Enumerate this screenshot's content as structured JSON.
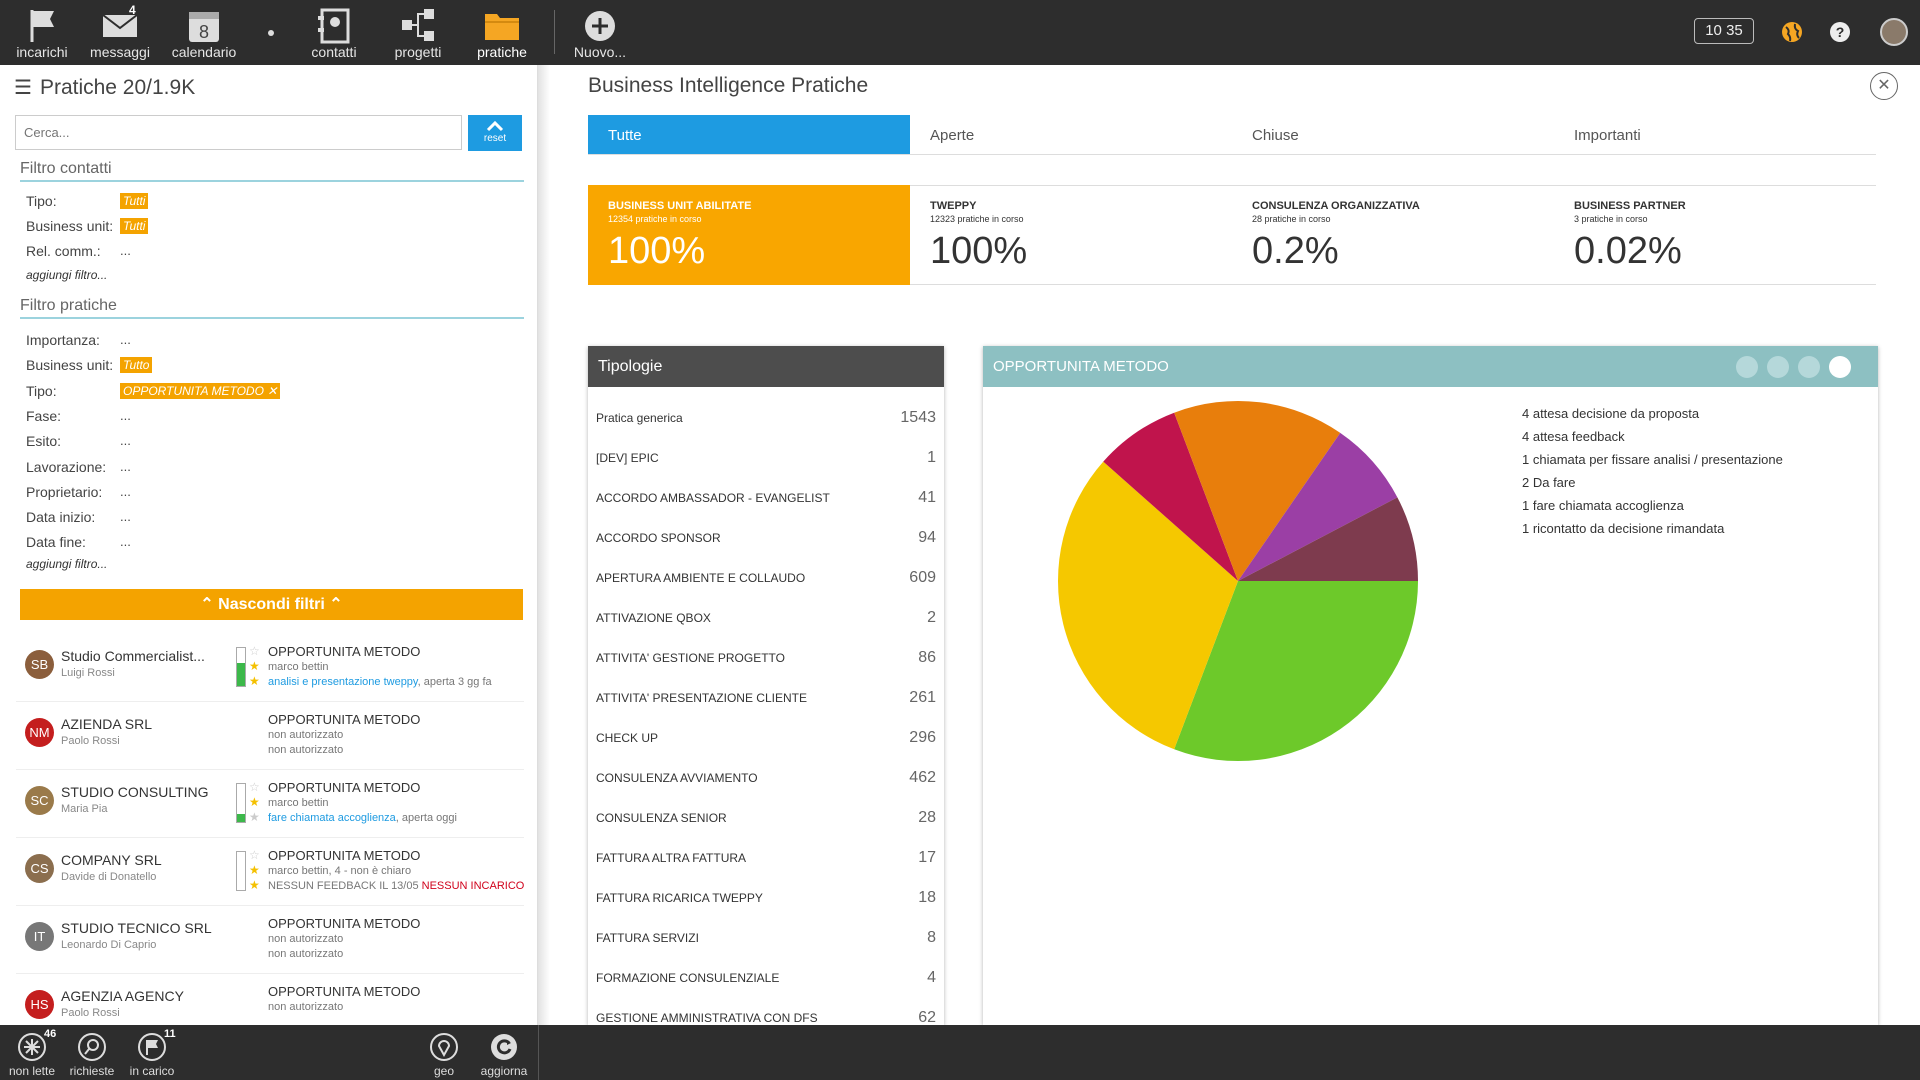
{
  "topbar": {
    "items": [
      {
        "label": "incarichi",
        "icon": "flag-icon",
        "badge": ""
      },
      {
        "label": "messaggi",
        "icon": "envelope-icon",
        "badge": "4"
      },
      {
        "label": "calendario",
        "icon": "calendar-icon",
        "badge": "",
        "day": "8"
      },
      {
        "label": "contatti",
        "icon": "contacts-icon",
        "badge": ""
      },
      {
        "label": "progetti",
        "icon": "hierarchy-icon",
        "badge": ""
      },
      {
        "label": "pratiche",
        "icon": "folder-icon",
        "badge": ""
      },
      {
        "label": "Nuovo...",
        "icon": "plus-circle-icon",
        "badge": ""
      }
    ],
    "clock": "10 35",
    "active_color": "#f5a623"
  },
  "left": {
    "title": "Pratiche 20/1.9K",
    "search_placeholder": "Cerca...",
    "reset_label": "reset",
    "filtro_contatti": {
      "title": "Filtro contatti",
      "rows": [
        {
          "label": "Tipo:",
          "value": "Tutti",
          "tag": true
        },
        {
          "label": "Business unit:",
          "value": "Tutti",
          "tag": true
        },
        {
          "label": "Rel. comm.:",
          "value": "...",
          "tag": false
        }
      ],
      "add": "aggiungi filtro..."
    },
    "filtro_pratiche": {
      "title": "Filtro pratiche",
      "rows": [
        {
          "label": "Importanza:",
          "value": "...",
          "tag": false
        },
        {
          "label": "Business unit:",
          "value": "Tutto",
          "tag": true
        },
        {
          "label": "Tipo:",
          "value": "OPPORTUNITA METODO ✕",
          "tag": true
        },
        {
          "label": "Fase:",
          "value": "...",
          "tag": false
        },
        {
          "label": "Esito:",
          "value": "...",
          "tag": false
        },
        {
          "label": "Lavorazione:",
          "value": "...",
          "tag": false
        },
        {
          "label": "Proprietario:",
          "value": "...",
          "tag": false
        },
        {
          "label": "Data inizio:",
          "value": "...",
          "tag": false
        },
        {
          "label": "Data fine:",
          "value": "...",
          "tag": false
        }
      ],
      "add": "aggiungi filtro..."
    },
    "hide_filters": "Nascondi filtri",
    "pratiche": [
      {
        "initials": "SB",
        "color": "#8b5e3c",
        "name": "Studio Commercialist...",
        "person": "Luigi Rossi",
        "type": "OPPORTUNITA METODO",
        "line2": "marco bettin",
        "line3_link": "analisi e presentazione tweppy",
        "line3_rest": ", aperta 3 gg fa",
        "line3_red": "",
        "progress": 0.6,
        "stars": 2
      },
      {
        "initials": "NM",
        "color": "#c41e1e",
        "name": "AZIENDA SRL",
        "person": "Paolo Rossi",
        "type": "OPPORTUNITA METODO",
        "line2": "non autorizzato",
        "line3_link": "",
        "line3_rest": "non autorizzato",
        "line3_red": "",
        "progress": null,
        "stars": 0
      },
      {
        "initials": "SC",
        "color": "#9a7a4a",
        "name": "STUDIO CONSULTING",
        "person": "Maria Pia",
        "type": "OPPORTUNITA METODO",
        "line2": "marco bettin",
        "line3_link": "fare chiamata accoglienza",
        "line3_rest": ", aperta oggi",
        "line3_red": "",
        "progress": 0.2,
        "stars": 1
      },
      {
        "initials": "CS",
        "color": "#8b6e4e",
        "name": "COMPANY SRL",
        "person": "Davide di Donatello",
        "type": "OPPORTUNITA METODO",
        "line2": "marco bettin, 4 - non è chiaro",
        "line3_link": "",
        "line3_rest": "NESSUN FEEDBACK IL 13/05 ",
        "line3_red": "NESSUN INCARICO",
        "progress": 0.0,
        "stars": 2
      },
      {
        "initials": "IT",
        "color": "#777777",
        "name": "STUDIO TECNICO SRL",
        "person": "Leonardo Di Caprio",
        "type": "OPPORTUNITA METODO",
        "line2": "non autorizzato",
        "line3_link": "",
        "line3_rest": "non autorizzato",
        "line3_red": "",
        "progress": null,
        "stars": 0
      },
      {
        "initials": "HS",
        "color": "#c41e1e",
        "name": "AGENZIA AGENCY",
        "person": "Paolo Rossi",
        "type": "OPPORTUNITA METODO",
        "line2": "non autorizzato",
        "line3_link": "",
        "line3_rest": "",
        "line3_red": "",
        "progress": null,
        "stars": 0
      }
    ]
  },
  "main": {
    "title": "Business Intelligence Pratiche",
    "tabs": [
      "Tutte",
      "Aperte",
      "Chiuse",
      "Importanti"
    ],
    "kpis": [
      {
        "name": "BUSINESS UNIT ABILITATE",
        "sub": "12354 pratiche in corso",
        "value": "100%"
      },
      {
        "name": "TWEPPY",
        "sub": "12323 pratiche in corso",
        "value": "100%"
      },
      {
        "name": "CONSULENZA ORGANIZZATIVA",
        "sub": "28 pratiche in corso",
        "value": "0.2%"
      },
      {
        "name": "BUSINESS PARTNER",
        "sub": "3 pratiche in corso",
        "value": "0.02%"
      }
    ],
    "tipologie": {
      "title": "Tipologie",
      "rows": [
        {
          "name": "Pratica generica",
          "value": "1543"
        },
        {
          "name": "[DEV] EPIC",
          "value": "1"
        },
        {
          "name": "ACCORDO AMBASSADOR - EVANGELIST",
          "value": "41"
        },
        {
          "name": "ACCORDO SPONSOR",
          "value": "94"
        },
        {
          "name": "APERTURA AMBIENTE E COLLAUDO",
          "value": "609"
        },
        {
          "name": "ATTIVAZIONE QBOX",
          "value": "2"
        },
        {
          "name": "ATTIVITA' GESTIONE PROGETTO",
          "value": "86"
        },
        {
          "name": "ATTIVITA' PRESENTAZIONE CLIENTE",
          "value": "261"
        },
        {
          "name": "CHECK UP",
          "value": "296"
        },
        {
          "name": "CONSULENZA AVVIAMENTO",
          "value": "462"
        },
        {
          "name": "CONSULENZA SENIOR",
          "value": "28"
        },
        {
          "name": "FATTURA ALTRA FATTURA",
          "value": "17"
        },
        {
          "name": "FATTURA RICARICA TWEPPY",
          "value": "18"
        },
        {
          "name": "FATTURA SERVIZI",
          "value": "8"
        },
        {
          "name": "FORMAZIONE CONSULENZIALE",
          "value": "4"
        },
        {
          "name": "GESTIONE AMMINISTRATIVA CON DFS",
          "value": "62"
        }
      ]
    },
    "chart_title": "OPPORTUNITA METODO",
    "legend": [
      "4  attesa decisione da proposta",
      "4  attesa feedback",
      "1  chiamata per fissare analisi / presentazione",
      "2  Da fare",
      "1  fare chiamata accoglienza",
      "1  ricontatto da decisione rimandata"
    ]
  },
  "chart_data": {
    "type": "pie",
    "title": "OPPORTUNITA METODO",
    "slices": [
      {
        "label": "attesa decisione da proposta",
        "value": 4,
        "color": "#f5c800"
      },
      {
        "label": "attesa feedback",
        "value": 4,
        "color": "#6dc92a"
      },
      {
        "label": "chiamata per fissare analisi / presentazione",
        "value": 1,
        "color": "#7e3b4e"
      },
      {
        "label": "Da fare",
        "value": 2,
        "color": "#e87e0c"
      },
      {
        "label": "fare chiamata accoglienza",
        "value": 1,
        "color": "#c0144c"
      },
      {
        "label": "ricontatto da decisione rimandata",
        "value": 1,
        "color": "#9b3fa5"
      }
    ]
  },
  "bottombar": {
    "items": [
      {
        "label": "non lette",
        "icon": "burst-icon",
        "badge": "46"
      },
      {
        "label": "richieste",
        "icon": "magnifier-icon",
        "badge": ""
      },
      {
        "label": "in carico",
        "icon": "flag-icon",
        "badge": "11"
      },
      {
        "label": "geo",
        "icon": "map-pin-icon",
        "badge": ""
      },
      {
        "label": "aggiorna",
        "icon": "refresh-icon",
        "badge": ""
      }
    ]
  }
}
